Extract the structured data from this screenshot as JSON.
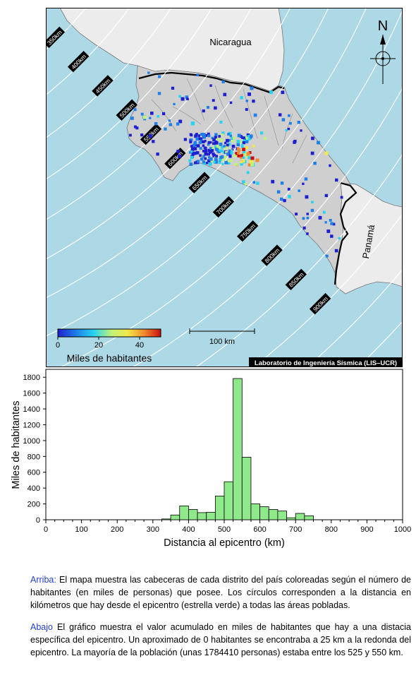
{
  "map": {
    "countries": {
      "north": "Nicaragua",
      "south": "Panamá"
    },
    "north_arrow": "N",
    "ring_labels": [
      "200km",
      "250km",
      "300km",
      "350km",
      "400km",
      "450km",
      "500km",
      "550km",
      "600km",
      "650km",
      "700km",
      "750km",
      "800km",
      "850km",
      "900km"
    ],
    "colorbar": {
      "ticks": [
        "0",
        "20",
        "40"
      ],
      "title": "Miles de habitantes",
      "colors": [
        "#1f1fd0",
        "#1e7fe8",
        "#27d3f0",
        "#bff27a",
        "#f2e84a",
        "#f08a2c",
        "#c81010"
      ]
    },
    "scalebar": {
      "label": "100 km"
    },
    "credit": "Laboratorio de Ingeniería Sísmica (LIS–UCR)"
  },
  "chart_data": {
    "type": "bar",
    "xlabel": "Distancia al epicentro (km)",
    "ylabel": "Miles de habitantes",
    "xlim": [
      0,
      1000
    ],
    "ylim": [
      0,
      1900
    ],
    "xticks": [
      0,
      100,
      200,
      300,
      400,
      500,
      600,
      700,
      800,
      900,
      1000
    ],
    "yticks": [
      0,
      200,
      400,
      600,
      800,
      1000,
      1200,
      1400,
      1600,
      1800
    ],
    "bin_width": 25,
    "bins": [
      {
        "x0": 325,
        "value": 10
      },
      {
        "x0": 350,
        "value": 60
      },
      {
        "x0": 375,
        "value": 175
      },
      {
        "x0": 400,
        "value": 130
      },
      {
        "x0": 425,
        "value": 90
      },
      {
        "x0": 450,
        "value": 95
      },
      {
        "x0": 475,
        "value": 300
      },
      {
        "x0": 500,
        "value": 480
      },
      {
        "x0": 525,
        "value": 1784
      },
      {
        "x0": 550,
        "value": 790
      },
      {
        "x0": 575,
        "value": 200
      },
      {
        "x0": 600,
        "value": 165
      },
      {
        "x0": 625,
        "value": 130
      },
      {
        "x0": 650,
        "value": 110
      },
      {
        "x0": 675,
        "value": 25
      },
      {
        "x0": 700,
        "value": 80
      },
      {
        "x0": 725,
        "value": 50
      }
    ],
    "bar_color": "#8fe88a"
  },
  "caption": {
    "top_label": "Arriba:",
    "top_text": " El mapa muestra las cabeceras de cada distrito del país coloreadas según el número de habitantes (en miles de personas) que posee.  Los círculos corresponden a la distancia en kilómetros que hay desde el epicentro (estrella verde) a todas las áreas pobladas.",
    "bottom_label": "Abajo",
    "bottom_text": " El gráfico muestra el valor acumulado en miles de habitantes que hay a una distacia específica del epicentro.  Un aproximado de 0 habitantes se encontraba a 25 km a la redonda del epicentro.  La mayoría de la población (unas 1784410 personas) estaba entre los 525 y 550 km."
  }
}
